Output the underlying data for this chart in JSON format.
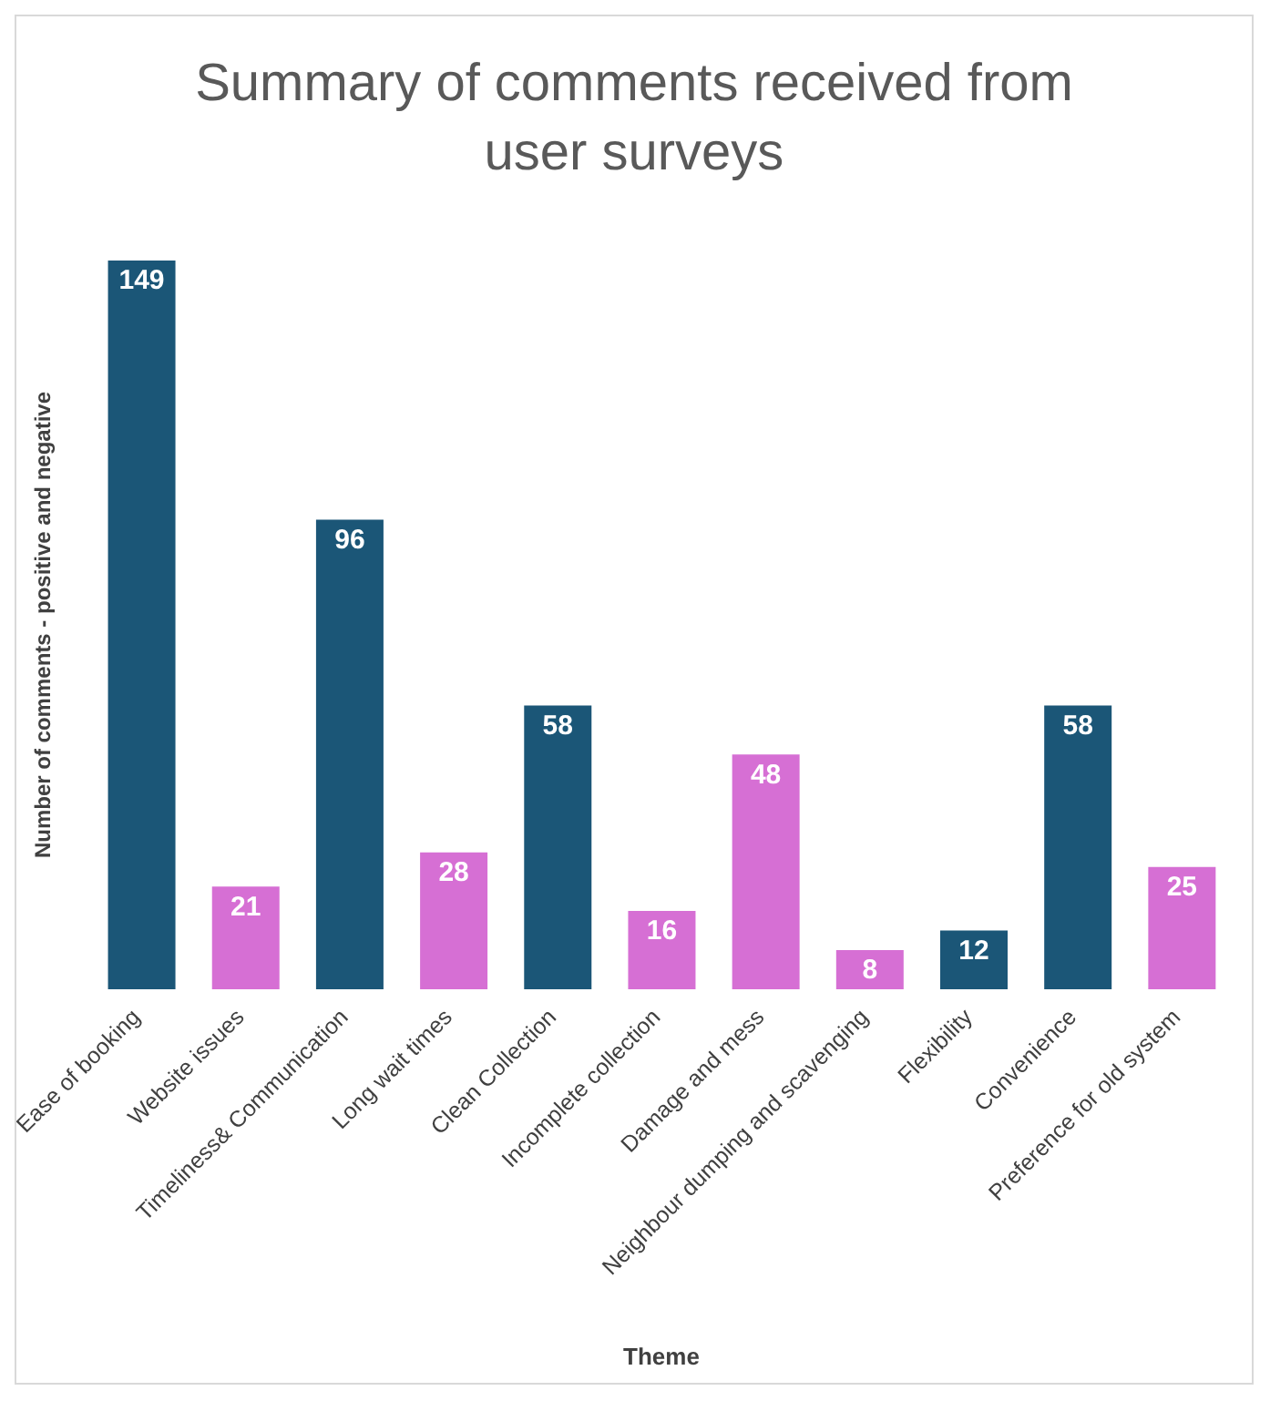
{
  "chart_data": {
    "type": "bar",
    "title": "Summary of comments received from user surveys",
    "xlabel": "Theme",
    "ylabel": "Number of comments - positive and negative",
    "categories": [
      "Ease of booking",
      "Website issues",
      "Timeliness& Communication",
      "Long wait times",
      "Clean Collection",
      "Incomplete collection",
      "Damage and mess",
      "Neighbour dumping and scavenging",
      "Flexibility",
      "Convenience",
      "Preference for old system"
    ],
    "values": [
      149,
      21,
      96,
      28,
      58,
      16,
      48,
      8,
      12,
      58,
      25
    ],
    "colors": [
      "#1b5677",
      "#d66fd4",
      "#1b5677",
      "#d66fd4",
      "#1b5677",
      "#d66fd4",
      "#d66fd4",
      "#d66fd4",
      "#1b5677",
      "#1b5677",
      "#d66fd4"
    ],
    "data_labels": true
  }
}
